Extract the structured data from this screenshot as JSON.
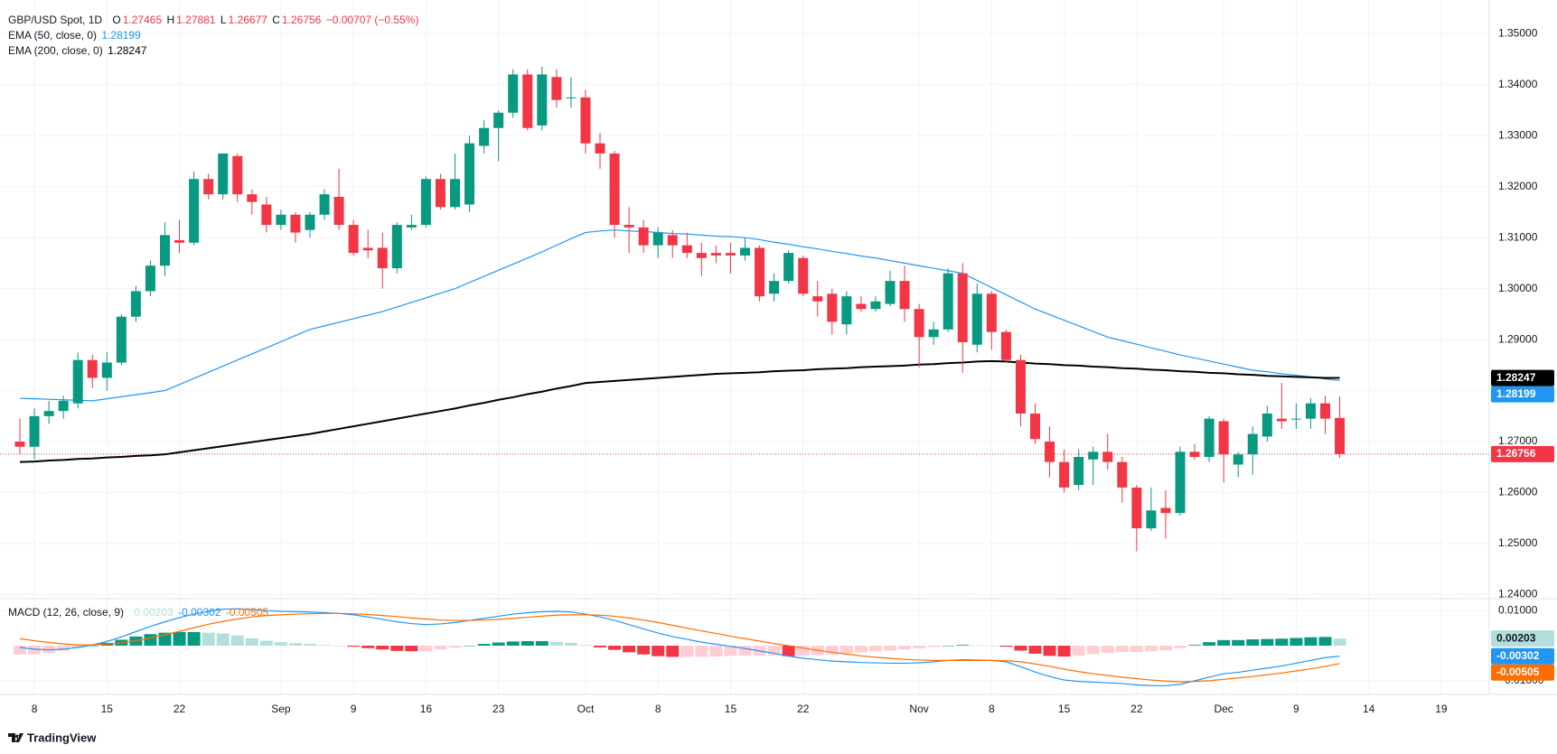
{
  "chart_data": {
    "type": "candlestick",
    "header": {
      "symbol": "GBP/USD Spot, 1D",
      "open_label": "O",
      "open": 1.27465,
      "high_label": "H",
      "high": 1.27881,
      "low_label": "L",
      "low": 1.26677,
      "close_label": "C",
      "close": 1.26756,
      "change": "−0.00707 (−0.55%)"
    },
    "colors": {
      "up": "#089981",
      "down": "#f23645"
    },
    "categories": [
      null,
      "8",
      null,
      null,
      null,
      null,
      "15",
      null,
      null,
      null,
      null,
      "22",
      null,
      null,
      null,
      null,
      null,
      null,
      "Sep",
      null,
      null,
      null,
      null,
      "9",
      null,
      null,
      null,
      null,
      "16",
      null,
      null,
      null,
      null,
      "23",
      null,
      null,
      null,
      null,
      null,
      "Oct",
      null,
      null,
      null,
      null,
      "8",
      null,
      null,
      null,
      null,
      "15",
      null,
      null,
      null,
      null,
      "22",
      null,
      null,
      null,
      null,
      null,
      null,
      null,
      "Nov",
      null,
      null,
      null,
      null,
      "8",
      null,
      null,
      null,
      null,
      "15",
      null,
      null,
      null,
      null,
      "22",
      null,
      null,
      null,
      null,
      null,
      "Dec",
      null,
      null,
      null,
      null,
      "9",
      null,
      null,
      null,
      null,
      "14",
      null,
      null,
      null,
      null,
      "19",
      null,
      null
    ],
    "open": [
      1.27,
      1.269,
      1.275,
      1.276,
      1.2775,
      1.286,
      1.2825,
      1.2855,
      1.2945,
      1.2995,
      1.3045,
      1.3095,
      1.309,
      1.3215,
      1.3185,
      1.326,
      1.3185,
      1.3165,
      1.3125,
      1.3145,
      1.3115,
      1.3145,
      1.318,
      1.3125,
      1.308,
      1.308,
      1.304,
      1.312,
      1.3125,
      1.3215,
      1.316,
      1.3165,
      1.328,
      1.3315,
      1.3345,
      1.342,
      1.332,
      1.3415,
      1.3375,
      1.3375,
      1.3285,
      1.3265,
      1.3125,
      1.312,
      1.3085,
      1.3105,
      1.3085,
      1.307,
      1.307,
      1.307,
      1.3065,
      1.308,
      1.299,
      1.3015,
      1.306,
      1.2985,
      1.299,
      1.293,
      1.297,
      1.296,
      1.297,
      1.3015,
      1.296,
      1.2905,
      1.292,
      1.303,
      1.289,
      1.299,
      1.2915,
      1.286,
      1.2755,
      1.27,
      1.266,
      1.2615,
      1.2665,
      1.268,
      1.266,
      1.261,
      1.253,
      1.257,
      1.256,
      1.268,
      1.267,
      1.274,
      1.2655,
      1.2675,
      1.271,
      1.2745,
      1.2745,
      1.2745,
      1.2775,
      1.27465,
      null,
      null,
      null,
      null,
      null,
      null,
      null,
      null,
      null
    ],
    "high": [
      1.2745,
      1.2765,
      1.278,
      1.279,
      1.2875,
      1.287,
      1.2875,
      1.295,
      1.3005,
      1.3055,
      1.313,
      1.3135,
      1.323,
      1.3225,
      1.3265,
      1.3265,
      1.3195,
      1.318,
      1.3155,
      1.315,
      1.315,
      1.3195,
      1.3235,
      1.3135,
      1.3115,
      1.311,
      1.313,
      1.3145,
      1.322,
      1.3225,
      1.3265,
      1.33,
      1.333,
      1.335,
      1.343,
      1.343,
      1.3435,
      1.343,
      1.3415,
      1.339,
      1.3305,
      1.327,
      1.316,
      1.3135,
      1.312,
      1.3115,
      1.311,
      1.309,
      1.3085,
      1.309,
      1.31,
      1.3085,
      1.303,
      1.3075,
      1.3065,
      1.3015,
      1.3,
      1.2995,
      1.2985,
      1.2985,
      1.3035,
      1.3045,
      1.297,
      1.2935,
      1.304,
      1.305,
      1.301,
      1.2995,
      1.292,
      1.287,
      1.2775,
      1.273,
      1.2685,
      1.2685,
      1.269,
      1.2715,
      1.267,
      1.2615,
      1.261,
      1.2605,
      1.269,
      1.2695,
      1.275,
      1.2745,
      1.268,
      1.273,
      1.277,
      1.2815,
      1.2775,
      1.2785,
      1.279,
      1.27881,
      null,
      null,
      null,
      null,
      null,
      null,
      null,
      null,
      null
    ],
    "low": [
      1.2675,
      1.2665,
      1.2735,
      1.2745,
      1.2765,
      1.2805,
      1.28,
      1.285,
      1.2935,
      1.2985,
      1.3025,
      1.307,
      1.3085,
      1.3175,
      1.3175,
      1.317,
      1.3145,
      1.311,
      1.3115,
      1.309,
      1.31,
      1.3135,
      1.3115,
      1.3065,
      1.306,
      1.3,
      1.303,
      1.3115,
      1.312,
      1.3155,
      1.3155,
      1.315,
      1.3265,
      1.325,
      1.3335,
      1.331,
      1.331,
      1.3355,
      1.3355,
      1.3265,
      1.3235,
      1.31,
      1.307,
      1.307,
      1.306,
      1.306,
      1.306,
      1.3025,
      1.305,
      1.303,
      1.3055,
      1.2975,
      1.2975,
      1.301,
      1.2985,
      1.2945,
      1.291,
      1.291,
      1.2955,
      1.2955,
      1.2965,
      1.2935,
      1.2845,
      1.289,
      1.2915,
      1.2835,
      1.2875,
      1.288,
      1.2855,
      1.273,
      1.2695,
      1.263,
      1.26,
      1.2605,
      1.2615,
      1.2645,
      1.258,
      1.2485,
      1.2525,
      1.251,
      1.2555,
      1.2665,
      1.266,
      1.262,
      1.263,
      1.2635,
      1.27,
      1.2725,
      1.2725,
      1.2725,
      1.2715,
      1.26677,
      null,
      null,
      null,
      null,
      null,
      null,
      null,
      null,
      null
    ],
    "close": [
      1.269,
      1.275,
      1.276,
      1.278,
      1.286,
      1.2825,
      1.2855,
      1.2945,
      1.2995,
      1.3045,
      1.3105,
      1.309,
      1.3215,
      1.3185,
      1.3265,
      1.3185,
      1.317,
      1.3125,
      1.3145,
      1.311,
      1.3145,
      1.3185,
      1.3125,
      1.307,
      1.3075,
      1.304,
      1.3125,
      1.3125,
      1.3215,
      1.316,
      1.3215,
      1.3285,
      1.3315,
      1.3345,
      1.342,
      1.3315,
      1.342,
      1.337,
      1.3375,
      1.3285,
      1.3265,
      1.3125,
      1.312,
      1.3085,
      1.311,
      1.3085,
      1.307,
      1.306,
      1.3065,
      1.3065,
      1.308,
      1.2985,
      1.3015,
      1.307,
      1.299,
      1.2975,
      1.2935,
      1.2985,
      1.296,
      1.2975,
      1.3015,
      1.296,
      1.2905,
      1.292,
      1.303,
      1.2895,
      1.299,
      1.2915,
      1.286,
      1.2755,
      1.2705,
      1.266,
      1.261,
      1.267,
      1.268,
      1.266,
      1.261,
      1.253,
      1.2565,
      1.256,
      1.268,
      1.267,
      1.2745,
      1.2675,
      1.2675,
      1.2715,
      1.2755,
      1.274,
      1.2745,
      1.2775,
      1.2745,
      1.26756,
      null,
      null,
      null,
      null,
      null,
      null,
      null,
      null,
      null
    ],
    "series": [
      {
        "name": "EMA (50, close, 0)",
        "color": "#2196f3",
        "last": 1.28199,
        "values": [
          1.2785,
          1.2784,
          1.2783,
          1.2782,
          1.2781,
          1.278,
          1.2784,
          1.2788,
          1.2792,
          1.2796,
          1.28,
          1.2812,
          1.2824,
          1.2836,
          1.2848,
          1.286,
          1.2872,
          1.2884,
          1.2896,
          1.2908,
          1.292,
          1.2927,
          1.2934,
          1.2941,
          1.2948,
          1.2955,
          1.2964,
          1.2973,
          1.2982,
          1.2991,
          1.3,
          1.3012,
          1.3024,
          1.3036,
          1.3048,
          1.306,
          1.3072,
          1.3085,
          1.3098,
          1.311,
          1.3113,
          1.3115,
          1.3113,
          1.3112,
          1.311,
          1.3108,
          1.3107,
          1.3105,
          1.3103,
          1.3102,
          1.31,
          1.3096,
          1.3091,
          1.3087,
          1.3082,
          1.3078,
          1.3073,
          1.3069,
          1.3064,
          1.306,
          1.3055,
          1.305,
          1.3045,
          1.304,
          1.3035,
          1.303,
          1.3016,
          1.3002,
          1.2988,
          1.2974,
          1.296,
          1.2949,
          1.2938,
          1.2927,
          1.2916,
          1.2905,
          1.2898,
          1.2891,
          1.2884,
          1.2877,
          1.287,
          1.2864,
          1.2858,
          1.2852,
          1.2846,
          1.284,
          1.2837,
          1.2833,
          1.283,
          1.2827,
          1.2823,
          1.282,
          null,
          null,
          null,
          null,
          null,
          null,
          null,
          null,
          null
        ]
      },
      {
        "name": "EMA (200, close, 0)",
        "color": "#000000",
        "last": 1.28247,
        "values": [
          1.266,
          1.2661,
          1.2663,
          1.2664,
          1.2666,
          1.2667,
          1.2669,
          1.267,
          1.2672,
          1.2673,
          1.2675,
          1.2679,
          1.2683,
          1.2687,
          1.2691,
          1.2695,
          1.2699,
          1.2703,
          1.2707,
          1.2711,
          1.2715,
          1.272,
          1.2725,
          1.273,
          1.2735,
          1.274,
          1.2745,
          1.275,
          1.2755,
          1.276,
          1.2765,
          1.2771,
          1.2776,
          1.2782,
          1.2787,
          1.2793,
          1.2798,
          1.2804,
          1.2809,
          1.2815,
          1.2817,
          1.2819,
          1.2821,
          1.2823,
          1.2825,
          1.2827,
          1.2829,
          1.2831,
          1.2833,
          1.2834,
          1.2835,
          1.2836,
          1.2838,
          1.2839,
          1.284,
          1.2842,
          1.2843,
          1.2844,
          1.2846,
          1.2847,
          1.2848,
          1.2849,
          1.2851,
          1.2852,
          1.2854,
          1.2855,
          1.2857,
          1.2858,
          1.2857,
          1.2855,
          1.2853,
          1.2852,
          1.285,
          1.2849,
          1.2847,
          1.2846,
          1.2844,
          1.2843,
          1.2841,
          1.284,
          1.2838,
          1.2837,
          1.2835,
          1.2834,
          1.2832,
          1.2831,
          1.2829,
          1.2828,
          1.2827,
          1.2826,
          1.2825,
          1.2825,
          null,
          null,
          null,
          null,
          null,
          null,
          null,
          null,
          null
        ]
      }
    ],
    "ylim": [
      1.2392,
      1.3566
    ],
    "yticks": [
      {
        "value": 1.24,
        "label": "1.24000"
      },
      {
        "value": 1.25,
        "label": "1.25000"
      },
      {
        "value": 1.26,
        "label": "1.26000"
      },
      {
        "value": 1.27,
        "label": "1.27000"
      },
      {
        "value": 1.28,
        "label": "1.28000"
      },
      {
        "value": 1.29,
        "label": "1.29000"
      },
      {
        "value": 1.3,
        "label": "1.30000"
      },
      {
        "value": 1.31,
        "label": "1.31000"
      },
      {
        "value": 1.32,
        "label": "1.32000"
      },
      {
        "value": 1.33,
        "label": "1.33000"
      },
      {
        "value": 1.34,
        "label": "1.34000"
      },
      {
        "value": 1.35,
        "label": "1.35000"
      }
    ],
    "grid": true,
    "price_badges": [
      {
        "value": 1.28247,
        "color": "#000000",
        "text_color": "#ffffff"
      },
      {
        "value": 1.28199,
        "color": "#2196f3",
        "text_color": "#ffffff"
      },
      {
        "value": 1.26756,
        "color": "#f23645",
        "text_color": "#ffffff",
        "line": "dotted"
      }
    ],
    "macd": {
      "title": "MACD (12, 26, close, 9)",
      "ylim": [
        -0.0139,
        0.0134
      ],
      "yticks": [
        {
          "value": 0.01,
          "label": "0.01000"
        },
        {
          "value": -0.01,
          "label": "−0.01000"
        }
      ],
      "histogram": {
        "colors": [
          "#089981",
          "#b2dfdb",
          "#f23645",
          "#ffcdd2"
        ],
        "last": 0.00203,
        "badge_color": "#b2dfdb",
        "badge_text_color": "#131722",
        "values": [
          -0.0025,
          -0.0024,
          -0.0021,
          -0.0015,
          -0.0007,
          0.0,
          0.0008,
          0.0017,
          0.0026,
          0.0033,
          0.0037,
          0.0039,
          0.0039,
          0.0037,
          0.0035,
          0.0029,
          0.0021,
          0.0014,
          0.001,
          0.0007,
          0.0005,
          0.0002,
          0.0,
          -0.0003,
          -0.0007,
          -0.0011,
          -0.0015,
          -0.0016,
          -0.0016,
          -0.0011,
          -0.0006,
          0.0,
          0.0005,
          0.0009,
          0.0012,
          0.0013,
          0.0013,
          0.0011,
          0.0008,
          0.0002,
          -0.0005,
          -0.0012,
          -0.0019,
          -0.0025,
          -0.003,
          -0.0032,
          -0.0032,
          -0.0032,
          -0.0031,
          -0.0029,
          -0.0028,
          -0.0028,
          -0.0028,
          -0.003,
          -0.0029,
          -0.0027,
          -0.0025,
          -0.0022,
          -0.0019,
          -0.0016,
          -0.0014,
          -0.0011,
          -0.0008,
          -0.0004,
          0.0,
          0.0002,
          0.0001,
          0.0,
          -0.0003,
          -0.0014,
          -0.0023,
          -0.0029,
          -0.0031,
          -0.0028,
          -0.0024,
          -0.0021,
          -0.0018,
          -0.0018,
          -0.0016,
          -0.0013,
          -0.0007,
          0.0002,
          0.001,
          0.0016,
          0.0016,
          0.0018,
          0.0019,
          0.002,
          0.0022,
          0.0024,
          0.0025,
          0.002,
          null,
          null,
          null,
          null,
          null,
          null,
          null,
          null,
          null
        ]
      },
      "lines": [
        {
          "color": "#2196f3",
          "last": -0.00302,
          "values": [
            -0.0005,
            -0.001,
            -0.0012,
            -0.001,
            -0.0005,
            0.0002,
            0.0012,
            0.0025,
            0.004,
            0.0055,
            0.0068,
            0.008,
            0.009,
            0.0098,
            0.0104,
            0.0105,
            0.0103,
            0.01,
            0.0098,
            0.0097,
            0.0096,
            0.0094,
            0.0092,
            0.0088,
            0.0082,
            0.0075,
            0.0068,
            0.0063,
            0.006,
            0.0062,
            0.0066,
            0.0072,
            0.0078,
            0.0084,
            0.009,
            0.0094,
            0.0097,
            0.0098,
            0.0096,
            0.009,
            0.0082,
            0.0072,
            0.006,
            0.0048,
            0.0036,
            0.0026,
            0.0018,
            0.001,
            0.0004,
            -0.0002,
            -0.0008,
            -0.0015,
            -0.0022,
            -0.003,
            -0.0036,
            -0.004,
            -0.0044,
            -0.0046,
            -0.0048,
            -0.0049,
            -0.005,
            -0.005,
            -0.0049,
            -0.0046,
            -0.0042,
            -0.004,
            -0.0041,
            -0.0042,
            -0.0046,
            -0.006,
            -0.0075,
            -0.0088,
            -0.0098,
            -0.0102,
            -0.0104,
            -0.0106,
            -0.0108,
            -0.0112,
            -0.0114,
            -0.0114,
            -0.011,
            -0.01,
            -0.009,
            -0.008,
            -0.0076,
            -0.007,
            -0.0064,
            -0.0058,
            -0.005,
            -0.0042,
            -0.0034,
            -0.003,
            null,
            null,
            null,
            null,
            null,
            null,
            null,
            null,
            null
          ]
        },
        {
          "color": "#ff6d00",
          "last": -0.00505,
          "values": [
            0.002,
            0.0014,
            0.0009,
            0.0005,
            0.0002,
            0.0002,
            0.0004,
            0.0008,
            0.0014,
            0.0022,
            0.0031,
            0.0041,
            0.0051,
            0.0061,
            0.0069,
            0.0076,
            0.0082,
            0.0086,
            0.0088,
            0.009,
            0.0091,
            0.0092,
            0.0092,
            0.0091,
            0.0089,
            0.0086,
            0.0083,
            0.0079,
            0.0076,
            0.0073,
            0.0072,
            0.0072,
            0.0073,
            0.0075,
            0.0078,
            0.0081,
            0.0084,
            0.0087,
            0.0088,
            0.0088,
            0.0087,
            0.0084,
            0.0079,
            0.0073,
            0.0066,
            0.0058,
            0.005,
            0.0042,
            0.0035,
            0.0027,
            0.002,
            0.0013,
            0.0006,
            0.0,
            -0.0007,
            -0.0013,
            -0.0019,
            -0.0024,
            -0.0029,
            -0.0033,
            -0.0036,
            -0.0039,
            -0.0041,
            -0.0042,
            -0.0042,
            -0.0042,
            -0.0042,
            -0.0042,
            -0.0043,
            -0.0046,
            -0.0052,
            -0.0059,
            -0.0067,
            -0.0074,
            -0.008,
            -0.0085,
            -0.009,
            -0.0094,
            -0.0098,
            -0.0101,
            -0.0103,
            -0.0102,
            -0.01,
            -0.0096,
            -0.0092,
            -0.0088,
            -0.0083,
            -0.0078,
            -0.0072,
            -0.0066,
            -0.0059,
            -0.0051,
            null,
            null,
            null,
            null,
            null,
            null,
            null,
            null,
            null
          ]
        }
      ]
    },
    "logo": "TradingView"
  }
}
